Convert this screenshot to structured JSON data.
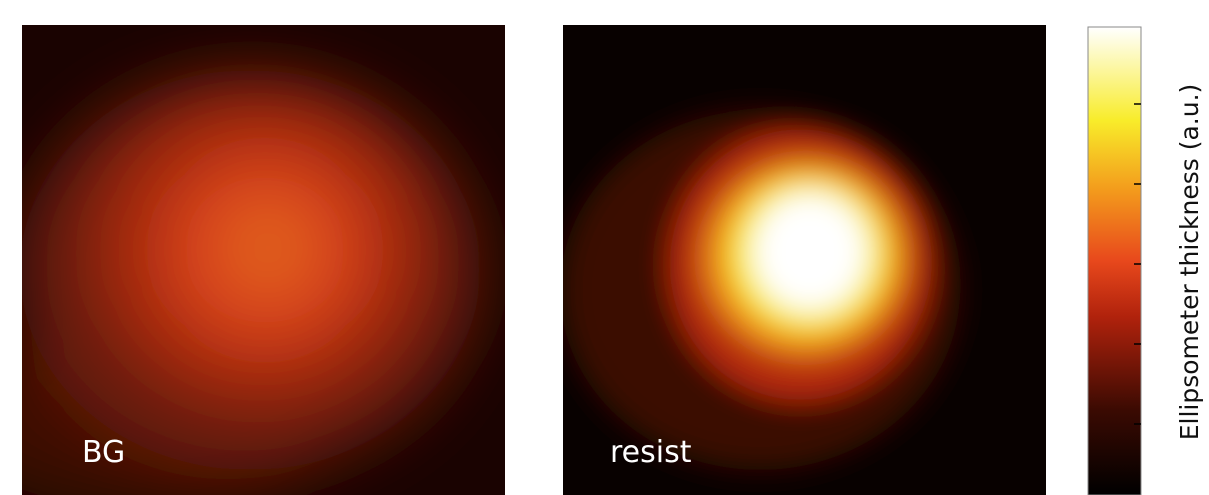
{
  "panels": [
    {
      "label": "BG"
    },
    {
      "label": "resist"
    }
  ],
  "colorbar": {
    "label": "Ellipsometer thickness (a.u.)"
  }
}
